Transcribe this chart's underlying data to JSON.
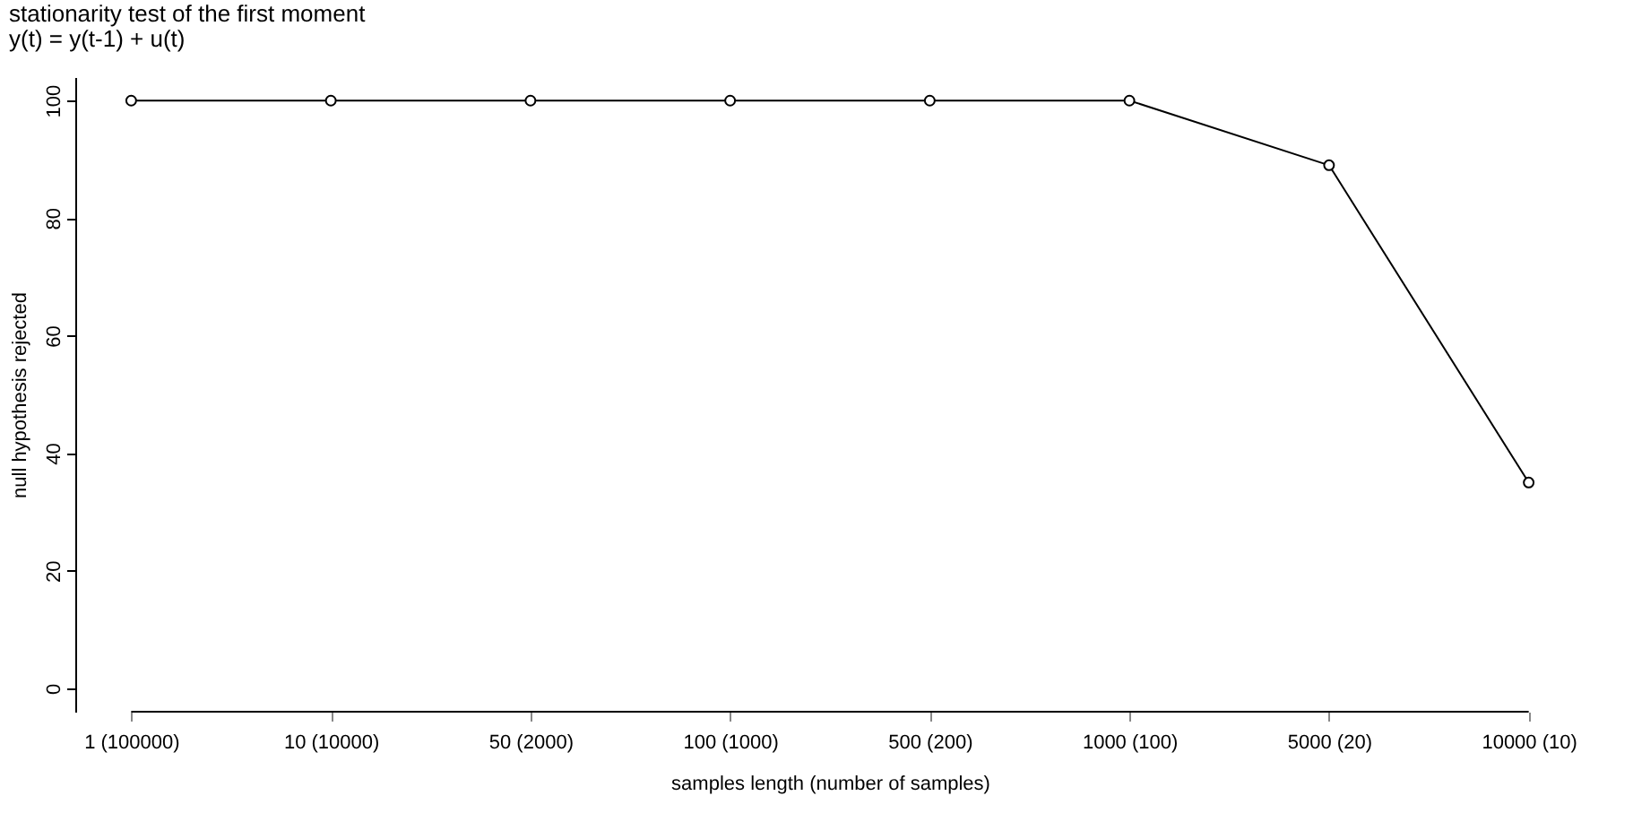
{
  "chart_data": {
    "type": "line",
    "title": "stationarity test of the first moment",
    "subtitle": "y(t) = y(t-1) + u(t)",
    "xlabel": "samples length (number of samples)",
    "ylabel": "null hypothesis rejected",
    "categories": [
      "1 (100000)",
      "10 (10000)",
      "50 (2000)",
      "100 (1000)",
      "500 (200)",
      "1000 (100)",
      "5000 (20)",
      "10000 (10)"
    ],
    "series": [
      {
        "color": "#000000",
        "values": [
          100,
          100,
          100,
          100,
          100,
          100,
          89,
          35
        ]
      }
    ],
    "ylim": [
      -4,
      104
    ],
    "yticks": [
      0,
      20,
      40,
      60,
      80,
      100
    ],
    "marker": "circle",
    "line_style": "solid",
    "grid": false
  }
}
